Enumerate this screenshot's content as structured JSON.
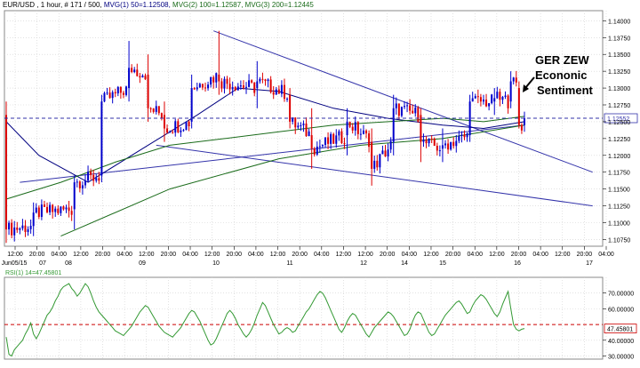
{
  "header": {
    "symbol": "EUR/USD",
    "info": ", 1 hour, # 171 / 500,",
    "mvg1": "MVG(1) 50=1.12508,",
    "mvg2": "MVG(2) 100=1.12587,",
    "mvg3": "MVG(3) 200=1.12445"
  },
  "colors": {
    "up": "#0000cc",
    "down": "#dd0000",
    "mvg1": "#000080",
    "mvg2": "#1a6b1a",
    "mvg3": "#1a6b1a",
    "rsi": "#339933",
    "trend": "#3333aa",
    "price_line": "#3333aa",
    "rsi_ref": "#cc0000",
    "grid": "#d0d0d0"
  },
  "annotation": {
    "lines": [
      "GER ZEW",
      "Econonic",
      "Sentiment"
    ],
    "arrow_icon": "arrow-down-left-icon"
  },
  "chart_data": [
    {
      "type": "candlestick",
      "instrument": "EUR/USD",
      "timeframe": "1 hour",
      "ylim": [
        1.1065,
        1.1415
      ],
      "y_ticks": [
        "1.14000",
        "1.13750",
        "1.13500",
        "1.13250",
        "1.13000",
        "1.12750",
        "1.12500",
        "1.12250",
        "1.12000",
        "1.11750",
        "1.11500",
        "1.11250",
        "1.11000",
        "1.10750"
      ],
      "current_price_label": "1.12552",
      "current_price": 1.12552,
      "time_labels": [
        "12:00",
        "20:00",
        "04:00",
        "12:00",
        "20:00",
        "04:00",
        "12:00",
        "20:00",
        "04:00",
        "12:00",
        "20:00",
        "04:00",
        "12:00",
        "20:00",
        "04:00",
        "12:00",
        "12:00",
        "20:00",
        "04:00",
        "12:00",
        "20:00",
        "04:00",
        "12:00",
        "20:00",
        "04:00",
        "12:00",
        "20:00",
        "04:00"
      ],
      "date_labels": [
        "Jun05/15",
        "07",
        "08",
        "09",
        "10",
        "11",
        "12",
        "14",
        "15",
        "16",
        "17"
      ],
      "ohlc_anchors": [
        {
          "i": 0,
          "o": 1.126,
          "h": 1.128,
          "l": 1.107,
          "c": 1.109
        },
        {
          "i": 10,
          "o": 1.1095,
          "h": 1.113,
          "l": 1.108,
          "c": 1.1115
        },
        {
          "i": 25,
          "o": 1.112,
          "h": 1.117,
          "l": 1.109,
          "c": 1.116
        },
        {
          "i": 35,
          "o": 1.117,
          "h": 1.129,
          "l": 1.116,
          "c": 1.128
        },
        {
          "i": 45,
          "o": 1.13,
          "h": 1.137,
          "l": 1.128,
          "c": 1.133
        },
        {
          "i": 52,
          "o": 1.132,
          "h": 1.135,
          "l": 1.125,
          "c": 1.127
        },
        {
          "i": 58,
          "o": 1.126,
          "h": 1.128,
          "l": 1.122,
          "c": 1.124
        },
        {
          "i": 68,
          "o": 1.125,
          "h": 1.132,
          "l": 1.124,
          "c": 1.13
        },
        {
          "i": 78,
          "o": 1.132,
          "h": 1.1385,
          "l": 1.129,
          "c": 1.131
        },
        {
          "i": 92,
          "o": 1.13,
          "h": 1.134,
          "l": 1.127,
          "c": 1.131
        },
        {
          "i": 104,
          "o": 1.129,
          "h": 1.13,
          "l": 1.124,
          "c": 1.125
        },
        {
          "i": 112,
          "o": 1.123,
          "h": 1.127,
          "l": 1.118,
          "c": 1.121
        },
        {
          "i": 125,
          "o": 1.123,
          "h": 1.127,
          "l": 1.12,
          "c": 1.125
        },
        {
          "i": 134,
          "o": 1.122,
          "h": 1.124,
          "l": 1.1155,
          "c": 1.118
        },
        {
          "i": 142,
          "o": 1.122,
          "h": 1.129,
          "l": 1.12,
          "c": 1.127
        },
        {
          "i": 152,
          "o": 1.126,
          "h": 1.127,
          "l": 1.119,
          "c": 1.122
        },
        {
          "i": 160,
          "o": 1.121,
          "h": 1.124,
          "l": 1.119,
          "c": 1.1215
        },
        {
          "i": 170,
          "o": 1.123,
          "h": 1.129,
          "l": 1.122,
          "c": 1.128
        },
        {
          "i": 179,
          "o": 1.128,
          "h": 1.13,
          "l": 1.126,
          "c": 1.1285
        },
        {
          "i": 185,
          "o": 1.128,
          "h": 1.1325,
          "l": 1.127,
          "c": 1.131
        },
        {
          "i": 188,
          "o": 1.13,
          "h": 1.131,
          "l": 1.124,
          "c": 1.1245
        },
        {
          "i": 190,
          "o": 1.1245,
          "h": 1.1265,
          "l": 1.1235,
          "c": 1.1255
        }
      ],
      "moving_averages": [
        {
          "name": "MVG(1) 50",
          "points": [
            [
              0,
              1.125
            ],
            [
              12,
              1.12
            ],
            [
              30,
              1.116
            ],
            [
              50,
              1.121
            ],
            [
              70,
              1.126
            ],
            [
              85,
              1.13
            ],
            [
              100,
              1.1295
            ],
            [
              120,
              1.127
            ],
            [
              140,
              1.1255
            ],
            [
              160,
              1.1245
            ],
            [
              175,
              1.124
            ],
            [
              190,
              1.125
            ]
          ]
        },
        {
          "name": "MVG(2) 100",
          "points": [
            [
              0,
              1.1135
            ],
            [
              20,
              1.116
            ],
            [
              40,
              1.119
            ],
            [
              60,
              1.1215
            ],
            [
              80,
              1.1225
            ],
            [
              100,
              1.1235
            ],
            [
              120,
              1.1245
            ],
            [
              140,
              1.125
            ],
            [
              160,
              1.1255
            ],
            [
              175,
              1.125
            ],
            [
              190,
              1.1258
            ]
          ]
        },
        {
          "name": "MVG(3) 200",
          "points": [
            [
              20,
              1.108
            ],
            [
              60,
              1.115
            ],
            [
              100,
              1.1195
            ],
            [
              130,
              1.1215
            ],
            [
              160,
              1.1225
            ],
            [
              190,
              1.1245
            ]
          ]
        }
      ],
      "trendlines": [
        {
          "from": [
            76,
            1.1385
          ],
          "to": [
            215,
            1.1175
          ]
        },
        {
          "from": [
            55,
            1.1215
          ],
          "to": [
            215,
            1.1125
          ]
        },
        {
          "from": [
            5,
            1.116
          ],
          "to": [
            190,
            1.1245
          ]
        }
      ]
    },
    {
      "type": "line",
      "title": "RSI(1) 14=47.45801",
      "ylim": [
        28,
        80
      ],
      "y_ticks": [
        "70.00000",
        "60.00000",
        "40.00000",
        "30.00000"
      ],
      "current_label": "47.45801",
      "reference_line": 50,
      "values": [
        42,
        31,
        30,
        34,
        36,
        38,
        40,
        44,
        47,
        51,
        44,
        41,
        44,
        48,
        52,
        56,
        58,
        61,
        65,
        68,
        72,
        74,
        75,
        76,
        73,
        71,
        68,
        70,
        73,
        76,
        74,
        70,
        65,
        61,
        58,
        56,
        54,
        52,
        50,
        48,
        46,
        45,
        44,
        43,
        45,
        47,
        49,
        52,
        55,
        58,
        60,
        62,
        61,
        58,
        55,
        52,
        49,
        47,
        45,
        44,
        43,
        42,
        44,
        46,
        48,
        51,
        54,
        57,
        59,
        58,
        55,
        52,
        48,
        44,
        40,
        37,
        38,
        41,
        45,
        49,
        53,
        57,
        59,
        57,
        54,
        50,
        47,
        44,
        42,
        44,
        47,
        51,
        56,
        60,
        64,
        62,
        58,
        54,
        50,
        47,
        44,
        45,
        47,
        48,
        47,
        45,
        46,
        49,
        52,
        55,
        58,
        60,
        63,
        66,
        69,
        71,
        70,
        67,
        63,
        59,
        55,
        51,
        47,
        45,
        48,
        52,
        55,
        57,
        56,
        53,
        50,
        47,
        44,
        42,
        45,
        48,
        50,
        52,
        54,
        56,
        58,
        57,
        55,
        52,
        49,
        46,
        43,
        44,
        47,
        52,
        56,
        58,
        57,
        53,
        49,
        45,
        43,
        44,
        47,
        50,
        53,
        56,
        58,
        60,
        62,
        64,
        65,
        63,
        60,
        57,
        58,
        62,
        65,
        67,
        69,
        68,
        66,
        63,
        60,
        57,
        55,
        58,
        63,
        67,
        71,
        60,
        50,
        47,
        46,
        47,
        47.46
      ]
    }
  ]
}
